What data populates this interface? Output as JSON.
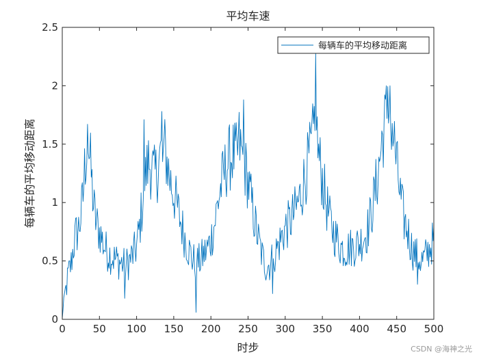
{
  "chart_data": {
    "type": "line",
    "title": "平均车速",
    "xlabel": "时步",
    "ylabel": "每辆车的平均移动距离",
    "xlim": [
      0,
      500
    ],
    "ylim": [
      0,
      2.5
    ],
    "xticks": [
      0,
      50,
      100,
      150,
      200,
      250,
      300,
      350,
      400,
      450,
      500
    ],
    "yticks": [
      0,
      0.5,
      1,
      1.5,
      2,
      2.5
    ],
    "ytick_labels": [
      "0",
      "0.5",
      "1",
      "1.5",
      "2",
      "2.5"
    ],
    "grid": false,
    "legend_position": "top-right",
    "series": [
      {
        "name": "每辆车的平均移动距离",
        "color": "#0072BD",
        "keypoints": [
          [
            0,
            0.0
          ],
          [
            2,
            0.18
          ],
          [
            5,
            0.25
          ],
          [
            8,
            0.38
          ],
          [
            12,
            0.48
          ],
          [
            15,
            0.62
          ],
          [
            18,
            0.72
          ],
          [
            22,
            0.78
          ],
          [
            25,
            0.88
          ],
          [
            28,
            1.05
          ],
          [
            30,
            1.28
          ],
          [
            32,
            1.42
          ],
          [
            34,
            1.5
          ],
          [
            36,
            1.45
          ],
          [
            38,
            1.32
          ],
          [
            40,
            1.15
          ],
          [
            42,
            0.98
          ],
          [
            45,
            0.85
          ],
          [
            48,
            0.78
          ],
          [
            52,
            0.72
          ],
          [
            55,
            0.65
          ],
          [
            60,
            0.58
          ],
          [
            65,
            0.55
          ],
          [
            70,
            0.52
          ],
          [
            75,
            0.5
          ],
          [
            80,
            0.48
          ],
          [
            85,
            0.46
          ],
          [
            90,
            0.5
          ],
          [
            95,
            0.55
          ],
          [
            100,
            0.62
          ],
          [
            104,
            0.78
          ],
          [
            108,
            1.0
          ],
          [
            112,
            1.22
          ],
          [
            116,
            1.35
          ],
          [
            120,
            1.3
          ],
          [
            124,
            1.22
          ],
          [
            128,
            1.28
          ],
          [
            132,
            1.4
          ],
          [
            135,
            1.48
          ],
          [
            138,
            1.45
          ],
          [
            141,
            1.35
          ],
          [
            145,
            1.2
          ],
          [
            150,
            1.08
          ],
          [
            155,
            0.95
          ],
          [
            160,
            0.82
          ],
          [
            165,
            0.7
          ],
          [
            170,
            0.6
          ],
          [
            175,
            0.52
          ],
          [
            180,
            0.48
          ],
          [
            185,
            0.5
          ],
          [
            190,
            0.55
          ],
          [
            195,
            0.6
          ],
          [
            200,
            0.68
          ],
          [
            205,
            0.82
          ],
          [
            210,
            1.02
          ],
          [
            215,
            1.18
          ],
          [
            220,
            1.3
          ],
          [
            225,
            1.38
          ],
          [
            230,
            1.42
          ],
          [
            235,
            1.38
          ],
          [
            238,
            1.52
          ],
          [
            240,
            1.45
          ],
          [
            244,
            1.35
          ],
          [
            248,
            1.25
          ],
          [
            252,
            1.1
          ],
          [
            256,
            0.95
          ],
          [
            260,
            0.8
          ],
          [
            265,
            0.65
          ],
          [
            270,
            0.52
          ],
          [
            275,
            0.45
          ],
          [
            280,
            0.48
          ],
          [
            285,
            0.55
          ],
          [
            290,
            0.62
          ],
          [
            295,
            0.7
          ],
          [
            300,
            0.78
          ],
          [
            305,
            0.82
          ],
          [
            310,
            0.88
          ],
          [
            315,
            0.95
          ],
          [
            320,
            1.05
          ],
          [
            325,
            1.18
          ],
          [
            330,
            1.32
          ],
          [
            335,
            1.45
          ],
          [
            338,
            1.58
          ],
          [
            340,
            1.85
          ],
          [
            342,
            1.62
          ],
          [
            345,
            1.4
          ],
          [
            350,
            1.2
          ],
          [
            355,
            1.0
          ],
          [
            360,
            0.85
          ],
          [
            365,
            0.75
          ],
          [
            370,
            0.68
          ],
          [
            375,
            0.62
          ],
          [
            380,
            0.6
          ],
          [
            390,
            0.62
          ],
          [
            400,
            0.65
          ],
          [
            405,
            0.7
          ],
          [
            410,
            0.75
          ],
          [
            415,
            0.88
          ],
          [
            420,
            1.05
          ],
          [
            425,
            1.25
          ],
          [
            430,
            1.52
          ],
          [
            435,
            1.72
          ],
          [
            440,
            1.78
          ],
          [
            444,
            1.65
          ],
          [
            448,
            1.45
          ],
          [
            452,
            1.2
          ],
          [
            456,
            1.0
          ],
          [
            460,
            0.85
          ],
          [
            465,
            0.75
          ],
          [
            470,
            0.62
          ],
          [
            475,
            0.55
          ],
          [
            480,
            0.52
          ],
          [
            485,
            0.5
          ],
          [
            490,
            0.55
          ],
          [
            495,
            0.62
          ],
          [
            500,
            0.68
          ]
        ],
        "extremes": [
          [
            34,
            1.67
          ],
          [
            35,
            1.42
          ],
          [
            84,
            0.18
          ],
          [
            110,
            1.71
          ],
          [
            111,
            1.1
          ],
          [
            134,
            1.78
          ],
          [
            135,
            1.35
          ],
          [
            180,
            0.06
          ],
          [
            181,
            0.48
          ],
          [
            244,
            1.88
          ],
          [
            245,
            1.42
          ],
          [
            283,
            0.22
          ],
          [
            284,
            0.52
          ],
          [
            341,
            2.28
          ],
          [
            342,
            1.62
          ],
          [
            436,
            2.0
          ],
          [
            437,
            1.72
          ],
          [
            441,
            2.0
          ],
          [
            442,
            1.62
          ],
          [
            478,
            0.3
          ]
        ]
      }
    ]
  },
  "watermark": "CSDN @海神之光"
}
